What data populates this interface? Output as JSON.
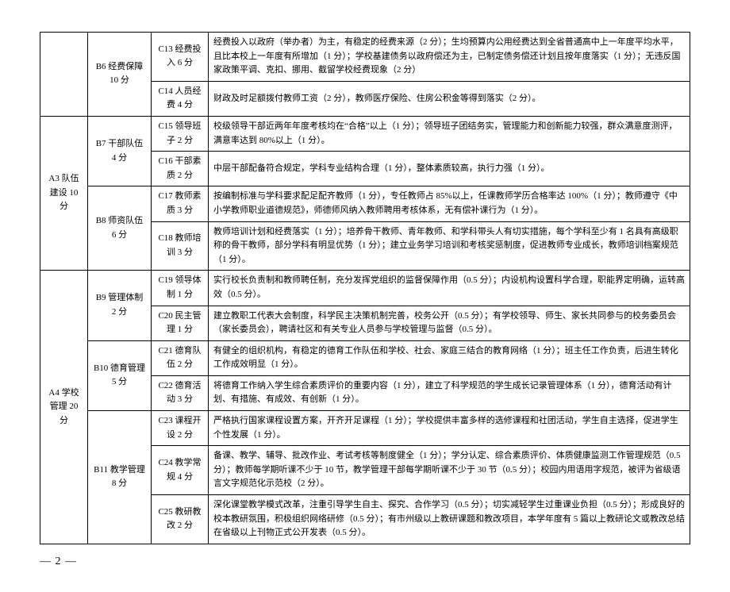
{
  "table": {
    "columns": {
      "c1_width": 60,
      "c2_width": 80,
      "c3_width": 72
    },
    "rows": [
      {
        "a": "",
        "aRows": 2,
        "b": "B6 经费保障 10 分",
        "bRows": 2,
        "c": "C13 经费投入 6 分",
        "d": "经费投入以政府（举办者）为主，有稳定的经费来源（2 分）；生均预算内公用经费达到全省普通高中上一年度平均水平，且比本校上一年度有所增加（1 分）；学校基建债务以政府偿还为主，已制定债务偿还计划且按年度落实（1 分）；无违反国家政策平调、克扣、挪用、截留学校经费现象（2 分）"
      },
      {
        "c": "C14 人员经费 4 分",
        "d": "财政及时足额拨付教师工资（2 分），教师医疗保险、住房公积金等得到落实（2 分）。"
      },
      {
        "a": "A3 队伍建设 10 分",
        "aRows": 4,
        "b": "B7 干部队伍 4 分",
        "bRows": 2,
        "c": "C15 领导班子 2 分",
        "d": "校级领导干部近两年年度考核均在“合格”以上（1 分）；领导班子团结务实，管理能力和创新能力较强，群众满意度测评，满意率达到 80%以上（1 分）。"
      },
      {
        "c": "C16 干部素质 2 分",
        "d": "中层干部配备符合规定，学科专业结构合理（1 分），整体素质较高，执行力强（1 分）。"
      },
      {
        "b": "B8 师资队伍 6 分",
        "bRows": 2,
        "c": "C17 教师素质 3 分",
        "d": "按编制标准与学科要求配足配齐教师（1 分），专任教师占 85%以上，任课教师学历合格率达 100%（1 分）；教师遵守《中小学教师职业道德规范》，师德师风纳入教师聘用考核体系，无有偿补课行为（1 分）。"
      },
      {
        "c": "C18 教师培训 3 分",
        "d": "教师培训计划和经费落实（1 分）；培养骨干教师、青年教师、和学科带头人有切实措施，每个学科至少有 1 名具有高级职称的骨干教师，部分学科有明显优势（1 分）；建立业务学习培训和考核奖惩制度，促进教师专业成长，教师培训档案规范（1 分）。"
      },
      {
        "a": "A4 学校管理 20 分",
        "aRows": 7,
        "b": "B9 管理体制 2 分",
        "bRows": 2,
        "c": "C19 领导体制 1 分",
        "d": "实行校长负责制和教师聘任制，充分发挥党组织的监督保障作用（0.5 分）；内设机构设置科学合理，职能界定明确，运转高效（0.5 分）。"
      },
      {
        "c": "C20 民主管理 1 分",
        "d": "建立教职工代表大会制度，科学民主决策机制完善，校务公开（0.5 分）；有学校领导、师生、家长共同参与的校务委员会（家长委员会），聘请社区和有关专业人员参与学校管理与监督（0.5 分）。"
      },
      {
        "b": "B10 德育管理 5 分",
        "bRows": 2,
        "c": "C21 德育队伍 2 分",
        "d": "有健全的组织机构，有稳定的德育工作队伍和学校、社会、家庭三结合的教育网络（1 分）；班主任工作负责，后进生转化工作成效明显（1 分）。"
      },
      {
        "c": "C22 德育活动 3 分",
        "d": "将德育工作纳入学生综合素质评价的重要内容（1 分），建立了科学规范的学生成长记录管理体系（1 分），德育活动有计划、有措施、有成效、有创新（1 分）。"
      },
      {
        "b": "B11 教学管理 8 分",
        "bRows": 3,
        "c": "C23 课程开设 2 分",
        "d": "严格执行国家课程设置方案，开齐开足课程（1 分）；学校提供丰富多样的选修课程和社团活动，学生自主选择，促进学生个性发展（1 分）。"
      },
      {
        "c": "C24 教学常规 4 分",
        "d": "备课、教学、辅导、批改作业、考试考核等制度健全（1 分）；学分认定、综合素质评价、体质健康监测工作管理规范（0.5 分）；教师每学期听课不少于 10 节，教学管理干部每学期听课不少于 30 节（0.5 分）；校园内用语用字规范，被评为省级语言文字规范化示范校（2 分）。"
      },
      {
        "c": "C25 教研教改 2 分",
        "d": "深化课堂教学模式改革，注重引导学生自主、探究、合作学习（0.5 分）；切实减轻学生过重课业负担（0.5 分）；形成良好的校本教研氛围，积极组织网络研修（0.5 分）；有市州级以上教研课题和教改项目，本学年度有 5 篇以上教研论文或教改总结在省级以上刊物正式公开发表（0.5 分）。"
      }
    ]
  },
  "page_number": "— 2 —"
}
